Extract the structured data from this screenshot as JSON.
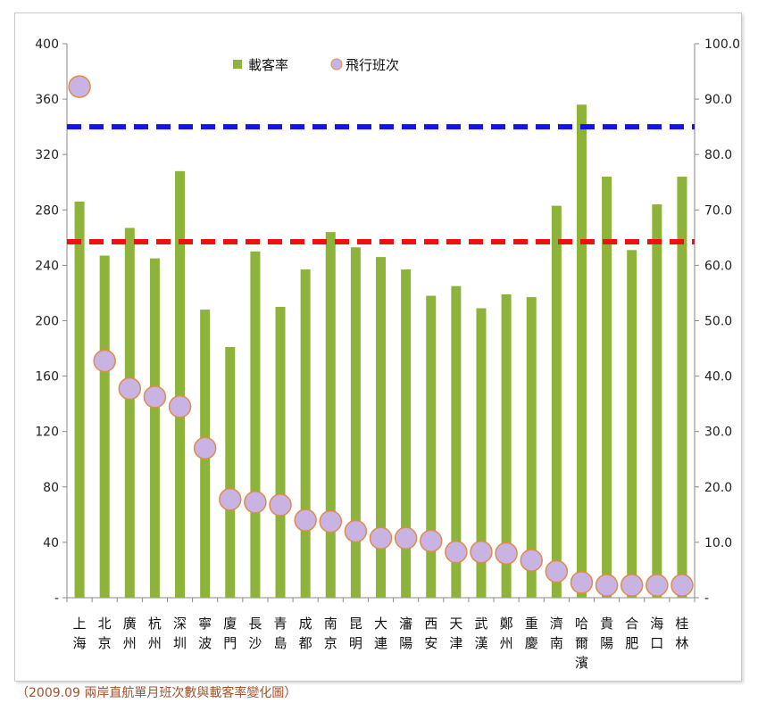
{
  "caption": "（2009.09 兩岸直航單月班次數與載客率變化圖）",
  "chart_data": {
    "type": "bar",
    "title": "",
    "xlabel": "",
    "ylabel": "",
    "legend_position": "top-center",
    "grid": false,
    "categories": [
      [
        "上",
        "海"
      ],
      [
        "北",
        "京"
      ],
      [
        "廣",
        "州"
      ],
      [
        "杭",
        "州"
      ],
      [
        "深",
        "圳"
      ],
      [
        "寧",
        "波"
      ],
      [
        "廈",
        "門"
      ],
      [
        "長",
        "沙"
      ],
      [
        "青",
        "島"
      ],
      [
        "成",
        "都"
      ],
      [
        "南",
        "京"
      ],
      [
        "昆",
        "明"
      ],
      [
        "大",
        "連"
      ],
      [
        "瀋",
        "陽"
      ],
      [
        "西",
        "安"
      ],
      [
        "天",
        "津"
      ],
      [
        "武",
        "漢"
      ],
      [
        "鄭",
        "州"
      ],
      [
        "重",
        "慶"
      ],
      [
        "濟",
        "南"
      ],
      [
        "哈",
        "爾",
        "濱"
      ],
      [
        "貴",
        "陽"
      ],
      [
        "合",
        "肥"
      ],
      [
        "海",
        "口"
      ],
      [
        "桂",
        "林"
      ]
    ],
    "left_axis": {
      "min": 0,
      "max": 400,
      "ticks": [
        "-",
        "40",
        "80",
        "120",
        "160",
        "200",
        "240",
        "280",
        "320",
        "360",
        "400"
      ]
    },
    "right_axis": {
      "min": 0,
      "max": 100,
      "ticks": [
        "-",
        "10.0",
        "20.0",
        "30.0",
        "40.0",
        "50.0",
        "60.0",
        "70.0",
        "80.0",
        "90.0",
        "100.0"
      ]
    },
    "series": [
      {
        "name": "載客率",
        "kind": "bar",
        "axis": "left",
        "color": "#8db33a",
        "values": [
          286,
          247,
          267,
          245,
          308,
          208,
          181,
          250,
          210,
          237,
          264,
          253,
          246,
          237,
          218,
          225,
          209,
          219,
          217,
          283,
          356,
          304,
          251,
          284,
          304
        ]
      },
      {
        "name": "飛行班次",
        "kind": "marker",
        "axis": "left",
        "color": "#c9b3e3",
        "edge_color": "#e08b4c",
        "values": [
          369,
          171,
          151,
          145,
          138,
          108,
          71,
          69,
          67,
          56,
          55,
          48,
          43,
          43,
          41,
          33,
          33,
          32,
          27,
          19,
          11,
          9,
          9,
          9,
          9
        ]
      }
    ],
    "reference_lines": [
      {
        "color": "#1414e6",
        "value": 340,
        "axis": "left"
      },
      {
        "color": "#ee1111",
        "value": 257,
        "axis": "left"
      }
    ]
  }
}
